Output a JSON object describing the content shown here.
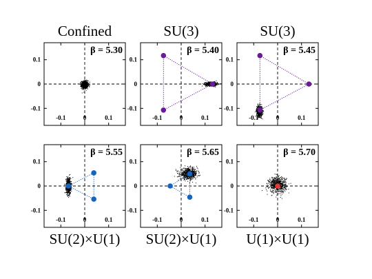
{
  "chart_data": [
    {
      "type": "scatter",
      "column_title": "Confined",
      "bottom_label": "",
      "beta_label": "β = 5.30",
      "xlim": [
        -0.17,
        0.17
      ],
      "ylim": [
        -0.17,
        0.17
      ],
      "xticks": [
        -0.1,
        0,
        0.1
      ],
      "xtick_labels": [
        "-0.1",
        "0",
        "0.1"
      ],
      "show_xticks": true,
      "yticks": [
        0.1,
        0,
        -0.1
      ],
      "ytick_labels": [
        "0.1",
        "0",
        "-0.1"
      ],
      "cloud": {
        "cx": 0.0,
        "cy": -0.003,
        "sx": 0.007,
        "sy": 0.008
      },
      "markers": [],
      "marker_color": "#6a1b9a"
    },
    {
      "type": "scatter",
      "column_title": "SU(3)",
      "bottom_label": "",
      "beta_label": "β = 5.40",
      "xlim": [
        -0.17,
        0.17
      ],
      "ylim": [
        -0.17,
        0.17
      ],
      "xticks": [
        -0.1,
        0,
        0.1
      ],
      "xtick_labels": [
        "-0.1",
        "0",
        "0.1"
      ],
      "show_xticks": true,
      "yticks": [
        0.1,
        0,
        -0.1
      ],
      "ytick_labels": [
        "0.1",
        "0",
        "-0.1"
      ],
      "cloud": {
        "cx": 0.127,
        "cy": 0.0,
        "sx": 0.012,
        "sy": 0.004
      },
      "markers": [
        {
          "x": -0.074,
          "y": 0.117
        },
        {
          "x": -0.074,
          "y": -0.107
        },
        {
          "x": 0.131,
          "y": 0.0
        }
      ],
      "marker_color": "#6a1b9a"
    },
    {
      "type": "scatter",
      "column_title": "SU(3)",
      "bottom_label": "",
      "beta_label": "β = 5.45",
      "xlim": [
        -0.17,
        0.17
      ],
      "ylim": [
        -0.17,
        0.17
      ],
      "xticks": [
        -0.1,
        0,
        0.1
      ],
      "xtick_labels": [
        "-0.1",
        "0",
        "0.1"
      ],
      "show_xticks": true,
      "yticks": [
        0.1,
        0,
        -0.1
      ],
      "ytick_labels": [
        "0.1",
        "0",
        "-0.1"
      ],
      "cloud": {
        "cx": -0.076,
        "cy": -0.112,
        "sx": 0.006,
        "sy": 0.011
      },
      "markers": [
        {
          "x": -0.074,
          "y": 0.117
        },
        {
          "x": -0.074,
          "y": -0.107
        },
        {
          "x": 0.131,
          "y": 0.0
        }
      ],
      "marker_color": "#6a1b9a"
    },
    {
      "type": "scatter",
      "column_title": "",
      "bottom_label": "SU(2)×U(1)",
      "beta_label": "β = 5.55",
      "xlim": [
        -0.17,
        0.17
      ],
      "ylim": [
        -0.17,
        0.17
      ],
      "xticks": [
        -0.1,
        0,
        0.1
      ],
      "xtick_labels": [
        "-0.1",
        "0",
        "0.1"
      ],
      "show_xticks": true,
      "yticks": [
        0.1,
        0,
        -0.1
      ],
      "ytick_labels": [
        "0.1",
        "0",
        "-0.1"
      ],
      "cloud": {
        "cx": -0.068,
        "cy": 0.0,
        "sx": 0.005,
        "sy": 0.016
      },
      "markers": [
        {
          "x": -0.068,
          "y": 0.0
        },
        {
          "x": 0.038,
          "y": 0.054
        },
        {
          "x": 0.038,
          "y": -0.054
        }
      ],
      "marker_color": "#1565c0"
    },
    {
      "type": "scatter",
      "column_title": "",
      "bottom_label": "SU(2)×U(1)",
      "beta_label": "β = 5.65",
      "xlim": [
        -0.17,
        0.17
      ],
      "ylim": [
        -0.17,
        0.17
      ],
      "xticks": [
        -0.1,
        0,
        0.1
      ],
      "xtick_labels": [
        "-0.1",
        "0",
        "0.1"
      ],
      "show_xticks": true,
      "yticks": [
        0.1,
        0,
        -0.1
      ],
      "ytick_labels": [
        "0.1",
        "0",
        "-0.1"
      ],
      "cloud": {
        "cx": 0.032,
        "cy": 0.05,
        "sx": 0.018,
        "sy": 0.011
      },
      "markers": [
        {
          "x": -0.046,
          "y": 0.0
        },
        {
          "x": 0.036,
          "y": 0.05
        },
        {
          "x": 0.036,
          "y": -0.046
        }
      ],
      "marker_color": "#1565c0"
    },
    {
      "type": "scatter",
      "column_title": "",
      "bottom_label": "U(1)×U(1)",
      "beta_label": "β = 5.70",
      "xlim": [
        -0.17,
        0.17
      ],
      "ylim": [
        -0.17,
        0.17
      ],
      "xticks": [
        -0.1,
        0,
        0.1
      ],
      "xtick_labels": [
        "-0.1",
        "0",
        "0.1"
      ],
      "show_xticks": true,
      "yticks": [
        0.1,
        0,
        -0.1
      ],
      "ytick_labels": [
        "0.1",
        "0",
        "-0.1"
      ],
      "cloud": {
        "cx": 0.0,
        "cy": 0.005,
        "sx": 0.018,
        "sy": 0.016
      },
      "markers": [
        {
          "x": 0.0,
          "y": 0.0
        }
      ],
      "marker_color": "#e53935"
    }
  ]
}
